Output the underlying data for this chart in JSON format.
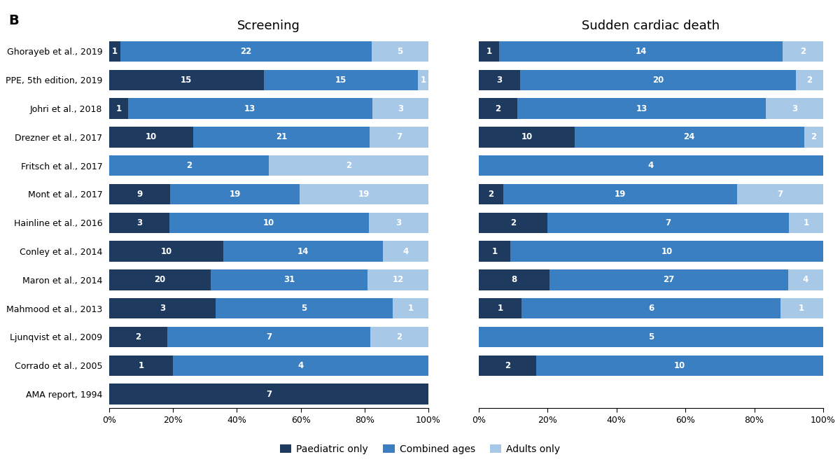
{
  "labels": [
    "Ghorayeb et al., 2019",
    "PPE, 5th edition, 2019",
    "Johri et al., 2018",
    "Drezner et al., 2017",
    "Fritsch et al., 2017",
    "Mont et al., 2017",
    "Hainline et al., 2016",
    "Conley et al., 2014",
    "Maron et al., 2014",
    "Mahmood et al., 2013",
    "Ljunqvist et al., 2009",
    "Corrado et al., 2005",
    "AMA report, 1994"
  ],
  "screening": {
    "paediatric": [
      1,
      15,
      1,
      10,
      0,
      9,
      3,
      10,
      20,
      3,
      2,
      1,
      7
    ],
    "combined": [
      22,
      15,
      13,
      21,
      2,
      19,
      10,
      14,
      31,
      5,
      7,
      4,
      0
    ],
    "adults": [
      5,
      1,
      3,
      7,
      2,
      19,
      3,
      4,
      12,
      1,
      2,
      0,
      0
    ]
  },
  "scd": {
    "paediatric": [
      1,
      3,
      2,
      10,
      0,
      2,
      2,
      1,
      8,
      1,
      0,
      2,
      0
    ],
    "combined": [
      14,
      20,
      13,
      24,
      4,
      19,
      7,
      10,
      27,
      6,
      5,
      10,
      0
    ],
    "adults": [
      2,
      2,
      3,
      2,
      0,
      7,
      1,
      0,
      4,
      1,
      0,
      0,
      0
    ]
  },
  "color_paediatric": "#1e3a5f",
  "color_combined": "#3a7fc1",
  "color_adults": "#a8c8e8",
  "title_screening": "Screening",
  "title_scd": "Sudden cardiac death",
  "label_b": "B",
  "legend_paediatric": "Paediatric only",
  "legend_combined": "Combined ages",
  "legend_adults": "Adults only",
  "bar_height": 0.72,
  "figsize": [
    12.0,
    6.63
  ],
  "dpi": 100,
  "bg_color": "#f0f4f8",
  "text_fontsize": 8.5,
  "label_fontsize": 9,
  "title_fontsize": 13
}
